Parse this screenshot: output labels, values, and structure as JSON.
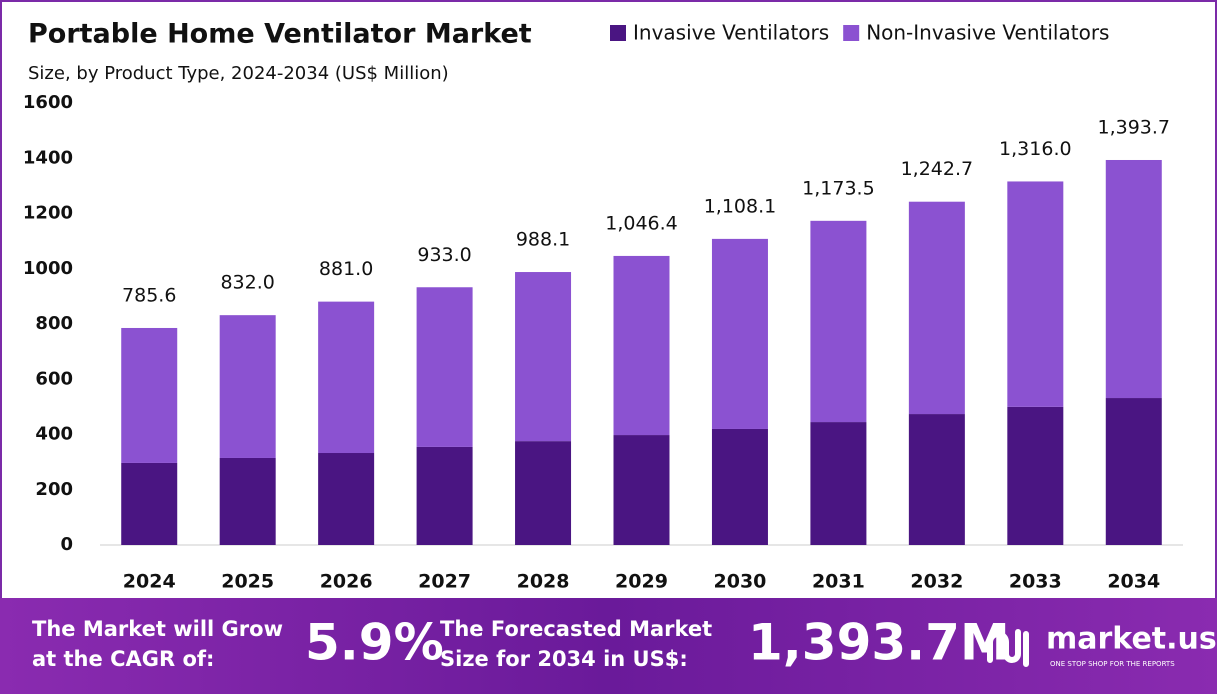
{
  "chart_data": {
    "type": "stacked_bar",
    "title": "Portable Home Ventilator Market",
    "subtitle": "Size, by Product Type, 2024-2034 (US$ Million)",
    "categories": [
      "2024",
      "2025",
      "2026",
      "2027",
      "2028",
      "2029",
      "2030",
      "2031",
      "2032",
      "2033",
      "2034"
    ],
    "series": [
      {
        "name": "Invasive Ventilators",
        "color": "#4a1582",
        "values": [
          297,
          315,
          333,
          355,
          376,
          398,
          420,
          445,
          474,
          500,
          532
        ]
      },
      {
        "name": "Non-Invasive Ventilators",
        "color": "#8b52d1",
        "values": [
          488.6,
          517,
          548,
          578,
          612.1,
          648.4,
          688.1,
          728.5,
          768.7,
          816,
          861.7
        ]
      }
    ],
    "totals": {
      "values": [
        785.6,
        832.0,
        881.0,
        933.0,
        988.1,
        1046.4,
        1108.1,
        1173.5,
        1242.7,
        1316.0,
        1393.7
      ],
      "value_labels": [
        "785.6",
        "832.0",
        "881.0",
        "933.0",
        "988.1",
        "1,046.4",
        "1,108.1",
        "1,173.5",
        "1,242.7",
        "1,316.0",
        "1,393.7"
      ]
    },
    "ylim": [
      0,
      1600
    ],
    "yticks": [
      0,
      200,
      400,
      600,
      800,
      1000,
      1200,
      1400,
      1600
    ],
    "grid": false,
    "legend": "top-right"
  },
  "banner": {
    "cagr_text": [
      "The Market will Grow",
      "at the CAGR of:"
    ],
    "cagr": "5.9%",
    "forecast_text": [
      "The Forecasted Market",
      "Size for 2034 in US$:"
    ],
    "forecast": "1,393.7M",
    "brand": "market.us",
    "tagline": "ONE STOP SHOP FOR THE REPORTS"
  }
}
